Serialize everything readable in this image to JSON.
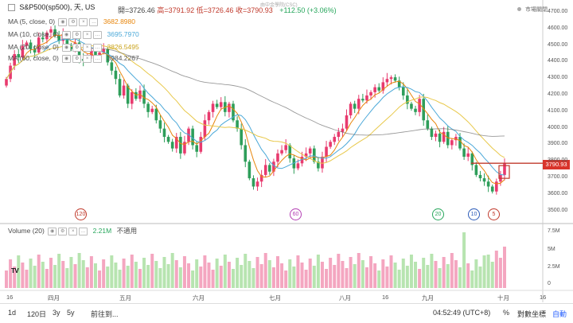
{
  "header": {
    "symbol": "S&P500(sp500), 天, US",
    "open": "開=3726.46",
    "high": "高=3791.92",
    "low": "低=3726.46",
    "close": "收=3790.93",
    "change": "+112.50 (+3.06%)",
    "market_status": "市場關閉",
    "watermark": "由中金學院(CSC)"
  },
  "indicators": [
    {
      "label": "MA (5, close, 0)",
      "value": "3682.8980",
      "color": "#e8860c"
    },
    {
      "label": "MA (10, close, 0)",
      "value": "3695.7970",
      "color": "#4aa8d8"
    },
    {
      "label": "MA (20, close, 0)",
      "value": "3826.5495",
      "color": "#e8c84a"
    },
    {
      "label": "MA (60, close, 0)",
      "value": "3984.2267",
      "color": "#555555"
    }
  ],
  "volume": {
    "label": "Volume (20)",
    "value": "2.21M",
    "note": "不適用"
  },
  "price_tag": "3790.93",
  "price_axis": [
    "4700.00",
    "4600.00",
    "4500.00",
    "4400.00",
    "4300.00",
    "4200.00",
    "4100.00",
    "4000.00",
    "3900.00",
    "3800.00",
    "3700.00",
    "3600.00",
    "3500.00"
  ],
  "volume_axis": [
    "7.5M",
    "5M",
    "2.5M",
    "0"
  ],
  "time_axis": [
    "16",
    "四月",
    "五月",
    "六月",
    "七月",
    "八月",
    "16",
    "九月",
    "十月",
    "16"
  ],
  "markers": [
    "120",
    "60",
    "20",
    "10",
    "5"
  ],
  "bottom_bar": {
    "buttons": [
      "1d",
      "120日",
      "3y",
      "5y"
    ],
    "goto": "前往到...",
    "time": "04:52:49 (UTC+8)",
    "percent": "%",
    "log": "對數坐標",
    "auto": "自動"
  },
  "logo": "TV",
  "colors": {
    "up": "#e83a6e",
    "down": "#2e9e5a",
    "vol_up": "#f4a6c0",
    "vol_down": "#b7e4b0",
    "resistance": "#c0392b"
  },
  "chart_data": {
    "type": "candlestick",
    "y_range": [
      3500,
      4700
    ],
    "closes": [
      4300,
      4380,
      4450,
      4430,
      4500,
      4520,
      4480,
      4460,
      4550,
      4540,
      4580,
      4600,
      4560,
      4530,
      4570,
      4500,
      4480,
      4520,
      4420,
      4410,
      4440,
      4470,
      4430,
      4460,
      4480,
      4400,
      4350,
      4300,
      4200,
      4260,
      4150,
      4220,
      4180,
      4230,
      4150,
      4100,
      4120,
      4050,
      4000,
      3950,
      3920,
      3880,
      3950,
      3850,
      3920,
      4000,
      3900,
      3860,
      3950,
      4050,
      4100,
      4150,
      4130,
      4160,
      4100,
      4150,
      4050,
      4000,
      3900,
      3800,
      3700,
      3650,
      3680,
      3720,
      3780,
      3740,
      3800,
      3850,
      3870,
      3900,
      3820,
      3760,
      3790,
      3830,
      3850,
      3880,
      3800,
      3760,
      3830,
      3890,
      3920,
      3950,
      3980,
      4000,
      4080,
      4150,
      4120,
      4180,
      4170,
      4200,
      4220,
      4250,
      4230,
      4280,
      4300,
      4310,
      4290,
      4250,
      4200,
      4150,
      4120,
      4100,
      4180,
      4050,
      4000,
      3950,
      3970,
      3920,
      3980,
      3900,
      3930,
      3950,
      3880,
      3830,
      3850,
      3780,
      3720,
      3700,
      3680,
      3650,
      3620,
      3680,
      3720,
      3790
    ]
  }
}
